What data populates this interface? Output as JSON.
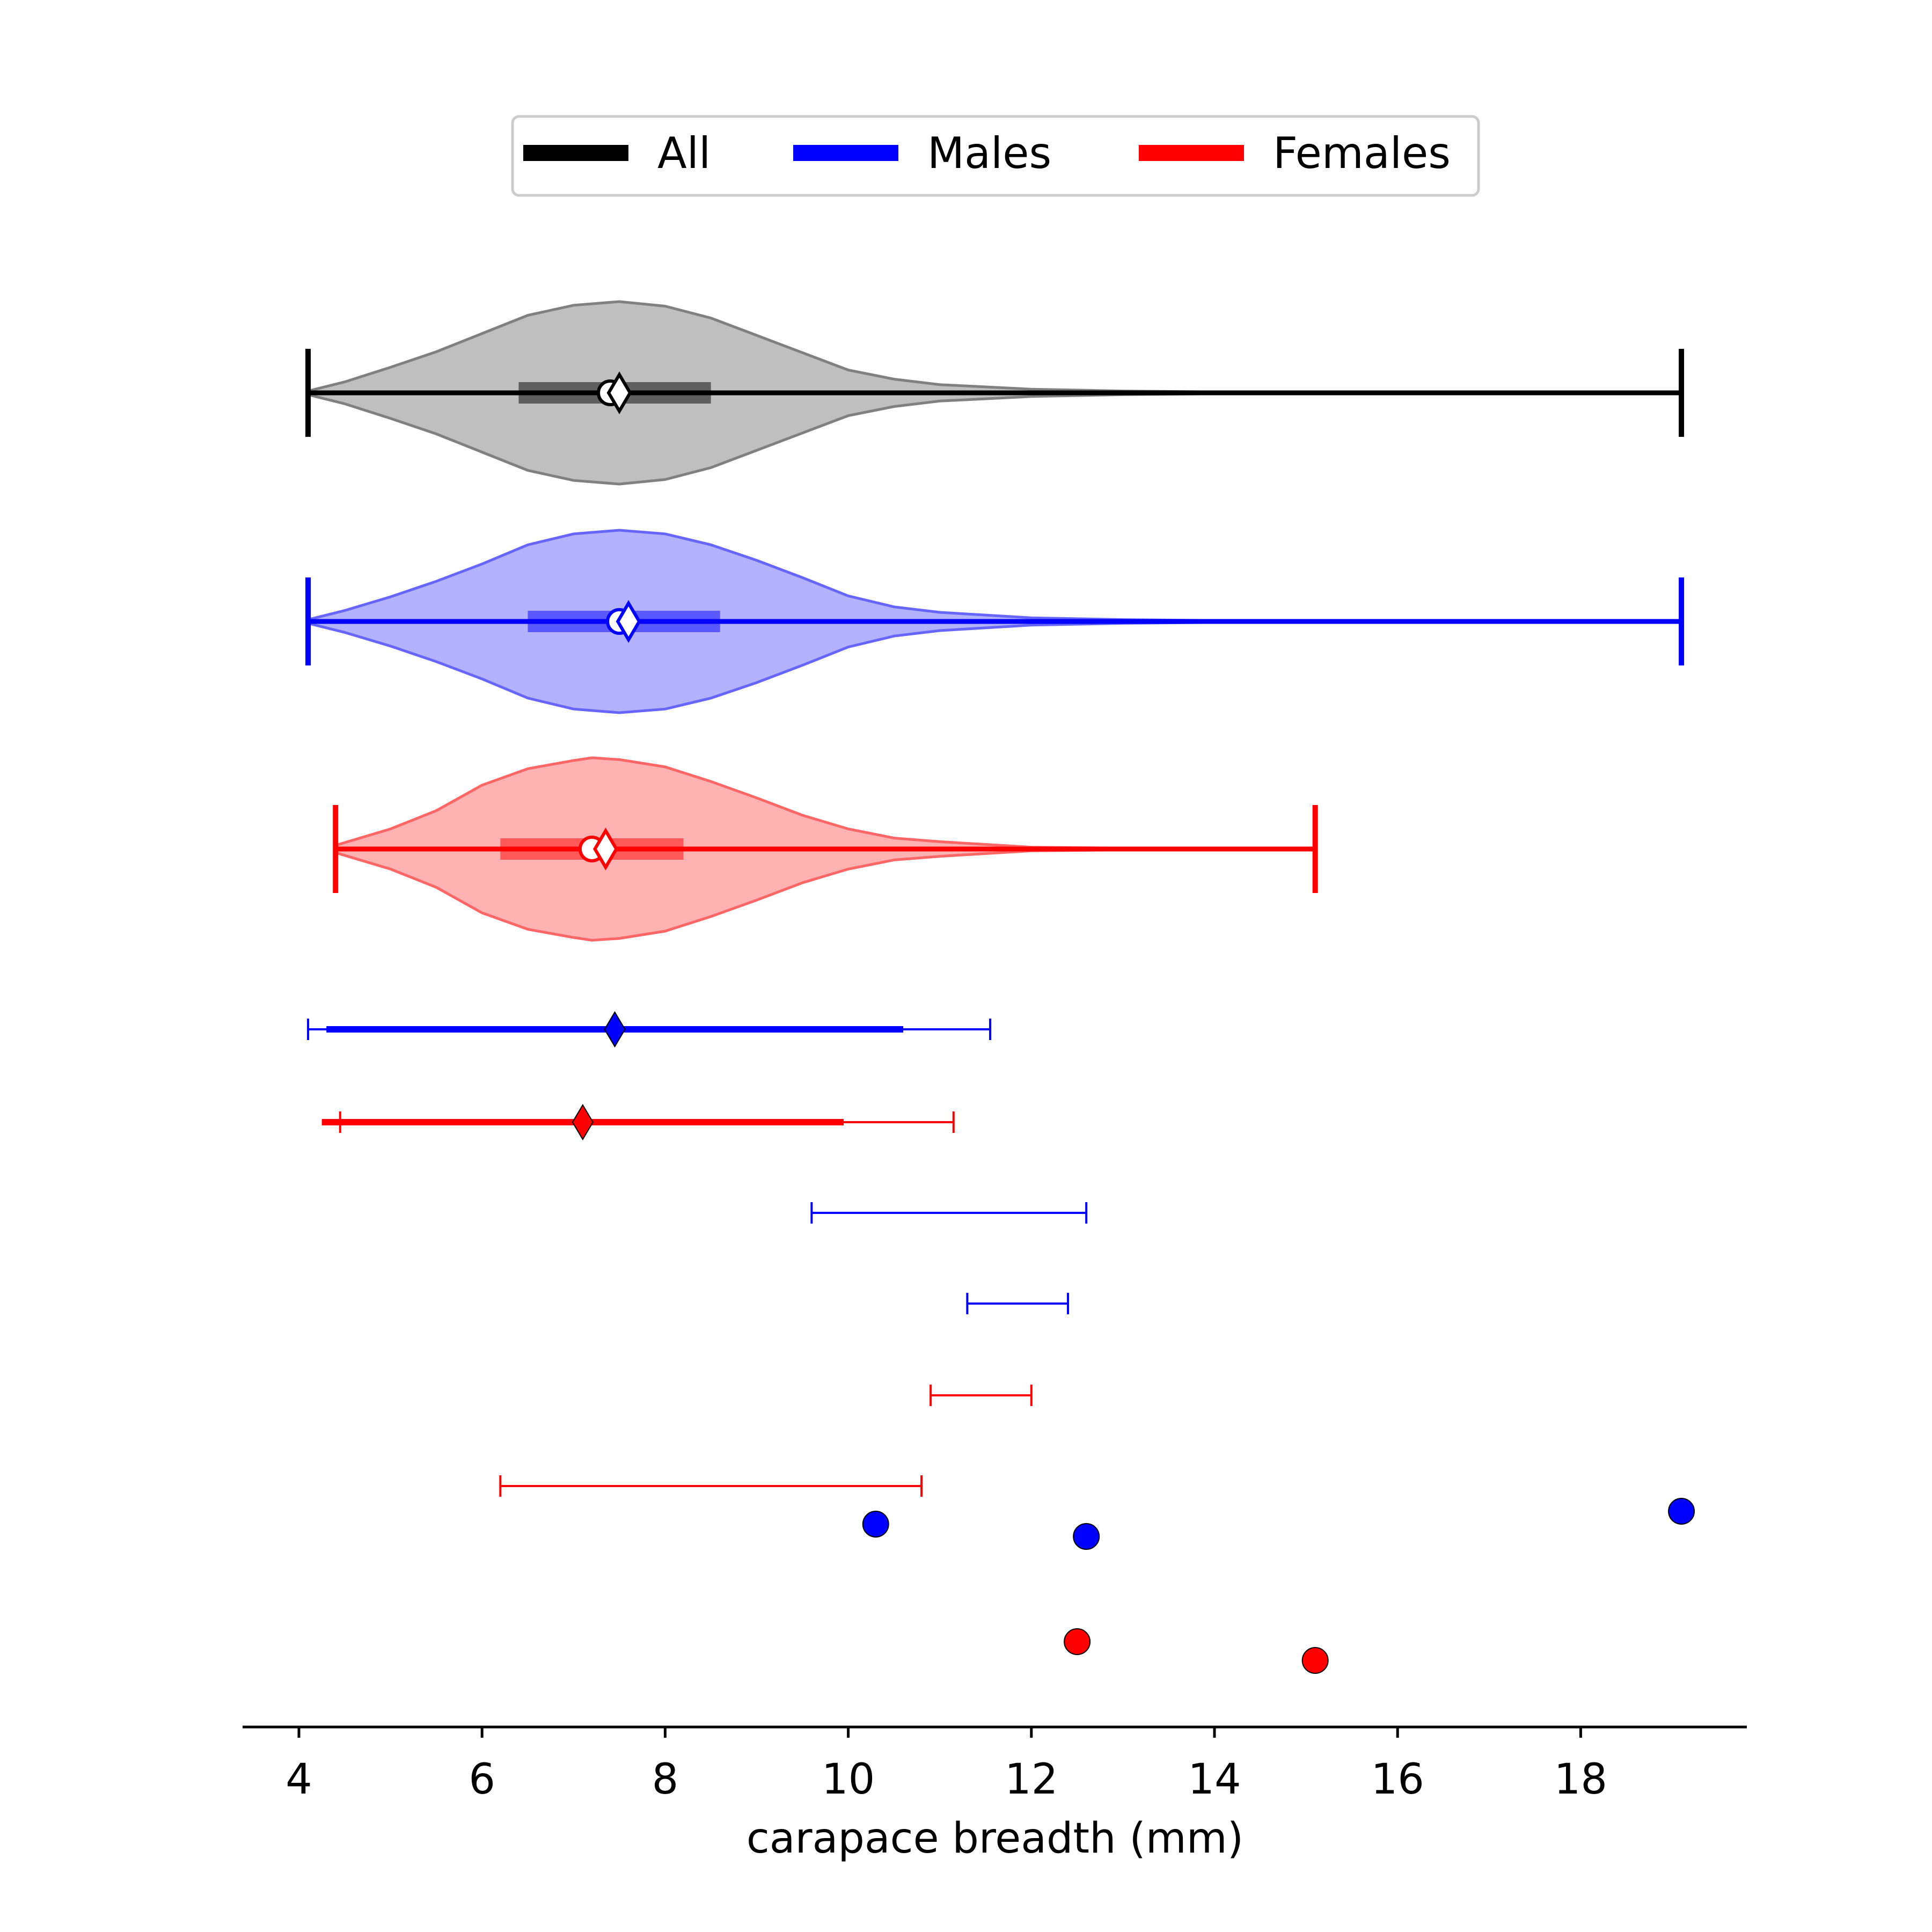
{
  "chart_data": {
    "type": "violin",
    "xlabel": "carapace breadth (mm)",
    "xlim": [
      3.3,
      19.8
    ],
    "xticks": [
      4,
      6,
      8,
      10,
      12,
      14,
      16,
      18
    ],
    "xtick_labels": [
      "4",
      "6",
      "8",
      "10",
      "12",
      "14",
      "16",
      "18"
    ],
    "grid": false,
    "legend": {
      "placement": "top-center",
      "entries": [
        {
          "label": "All",
          "color": "#000000"
        },
        {
          "label": "Males",
          "color": "#0000ff"
        },
        {
          "label": "Females",
          "color": "#ff0000"
        }
      ]
    },
    "violins": [
      {
        "group": "All",
        "color": "#000000",
        "fill": "#808080",
        "min": 4.1,
        "max": 19.1,
        "q1": 6.4,
        "q3": 8.5,
        "median": 7.4,
        "mean": 7.5,
        "density": [
          [
            4.1,
            0.02
          ],
          [
            4.5,
            0.12
          ],
          [
            5,
            0.28
          ],
          [
            5.5,
            0.45
          ],
          [
            6,
            0.65
          ],
          [
            6.5,
            0.85
          ],
          [
            7,
            0.96
          ],
          [
            7.5,
            1.0
          ],
          [
            8,
            0.95
          ],
          [
            8.5,
            0.82
          ],
          [
            9,
            0.63
          ],
          [
            9.5,
            0.44
          ],
          [
            10,
            0.25
          ],
          [
            10.5,
            0.15
          ],
          [
            11,
            0.09
          ],
          [
            12,
            0.04
          ],
          [
            13,
            0.02
          ],
          [
            14,
            0.01
          ],
          [
            16,
            0.005
          ],
          [
            19.1,
            0.003
          ]
        ]
      },
      {
        "group": "Males",
        "color": "#0000ff",
        "fill": "#6666ff",
        "min": 4.1,
        "max": 19.1,
        "q1": 6.5,
        "q3": 8.6,
        "median": 7.5,
        "mean": 7.6,
        "density": [
          [
            4.1,
            0.02
          ],
          [
            4.5,
            0.12
          ],
          [
            5,
            0.27
          ],
          [
            5.5,
            0.44
          ],
          [
            6,
            0.63
          ],
          [
            6.5,
            0.84
          ],
          [
            7,
            0.96
          ],
          [
            7.5,
            1.0
          ],
          [
            8,
            0.96
          ],
          [
            8.5,
            0.84
          ],
          [
            9,
            0.67
          ],
          [
            9.5,
            0.48
          ],
          [
            10,
            0.28
          ],
          [
            10.5,
            0.16
          ],
          [
            11,
            0.1
          ],
          [
            12,
            0.04
          ],
          [
            13,
            0.02
          ],
          [
            14,
            0.01
          ],
          [
            16,
            0.005
          ],
          [
            19.1,
            0.003
          ]
        ]
      },
      {
        "group": "Females",
        "color": "#ff0000",
        "fill": "#ff6666",
        "min": 4.4,
        "max": 15.1,
        "q1": 6.2,
        "q3": 8.2,
        "median": 7.2,
        "mean": 7.35,
        "density": [
          [
            4.4,
            0.04
          ],
          [
            5,
            0.22
          ],
          [
            5.5,
            0.42
          ],
          [
            6,
            0.7
          ],
          [
            6.5,
            0.88
          ],
          [
            7,
            0.97
          ],
          [
            7.2,
            1.0
          ],
          [
            7.5,
            0.98
          ],
          [
            8,
            0.9
          ],
          [
            8.5,
            0.74
          ],
          [
            9,
            0.56
          ],
          [
            9.5,
            0.37
          ],
          [
            10,
            0.22
          ],
          [
            10.5,
            0.12
          ],
          [
            11,
            0.08
          ],
          [
            11.5,
            0.05
          ],
          [
            12,
            0.02
          ],
          [
            13,
            0.01
          ],
          [
            15.1,
            0.005
          ]
        ]
      }
    ],
    "intervals": [
      {
        "group": "Males",
        "color": "#0000ff",
        "center": 7.45,
        "thick": [
          4.3,
          10.6
        ],
        "thin": [
          4.1,
          11.55
        ]
      },
      {
        "group": "Females",
        "color": "#ff0000",
        "center": 7.1,
        "thick": [
          4.25,
          9.95
        ],
        "thin": [
          4.45,
          11.15
        ]
      }
    ],
    "ranges": [
      {
        "group": "Males",
        "color": "#0000ff",
        "low": 9.6,
        "high": 12.6
      },
      {
        "group": "Males",
        "color": "#0000ff",
        "low": 11.3,
        "high": 12.4
      },
      {
        "group": "Females",
        "color": "#ff0000",
        "low": 10.9,
        "high": 12.0
      },
      {
        "group": "Females",
        "color": "#ff0000",
        "low": 6.2,
        "high": 10.8
      }
    ],
    "points": [
      {
        "group": "Males",
        "color": "#0000ff",
        "x": 10.3
      },
      {
        "group": "Males",
        "color": "#0000ff",
        "x": 12.6
      },
      {
        "group": "Males",
        "color": "#0000ff",
        "x": 19.1
      },
      {
        "group": "Females",
        "color": "#ff0000",
        "x": 12.5
      },
      {
        "group": "Females",
        "color": "#ff0000",
        "x": 15.1
      }
    ]
  }
}
